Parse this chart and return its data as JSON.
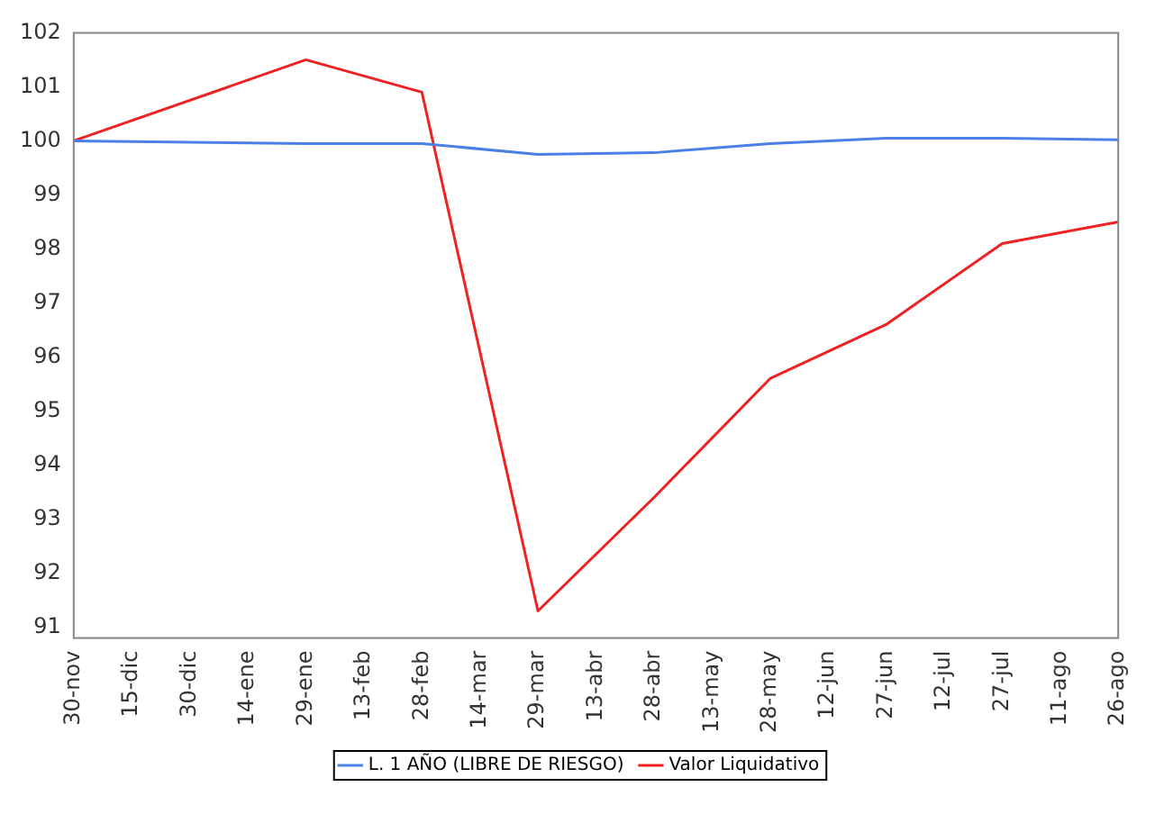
{
  "chart_data": {
    "type": "line",
    "categories": [
      "30-nov",
      "15-dic",
      "30-dic",
      "14-ene",
      "29-ene",
      "13-feb",
      "28-feb",
      "14-mar",
      "29-mar",
      "13-abr",
      "28-abr",
      "13-may",
      "28-may",
      "12-jun",
      "27-jun",
      "12-jul",
      "27-jul",
      "11-ago",
      "26-ago"
    ],
    "series": [
      {
        "name": "L. 1 AÑO (LIBRE DE RIESGO)",
        "color": "#4a7fe8",
        "values": [
          100,
          null,
          null,
          null,
          99.95,
          null,
          99.95,
          null,
          99.75,
          null,
          99.78,
          null,
          99.95,
          null,
          100.05,
          null,
          100.05,
          null,
          100.02
        ]
      },
      {
        "name": "Valor Liquidativo",
        "color": "#ee2222",
        "values": [
          100,
          null,
          null,
          null,
          101.5,
          null,
          100.9,
          null,
          91.3,
          null,
          93.4,
          null,
          95.6,
          null,
          96.6,
          null,
          98.1,
          null,
          98.5
        ]
      }
    ],
    "ylim": [
      90.8,
      102
    ],
    "yticks": [
      91,
      92,
      93,
      94,
      95,
      96,
      97,
      98,
      99,
      100,
      101,
      102
    ],
    "grid": false,
    "legend": "bottom",
    "marker": "none",
    "line_style": "solid"
  }
}
